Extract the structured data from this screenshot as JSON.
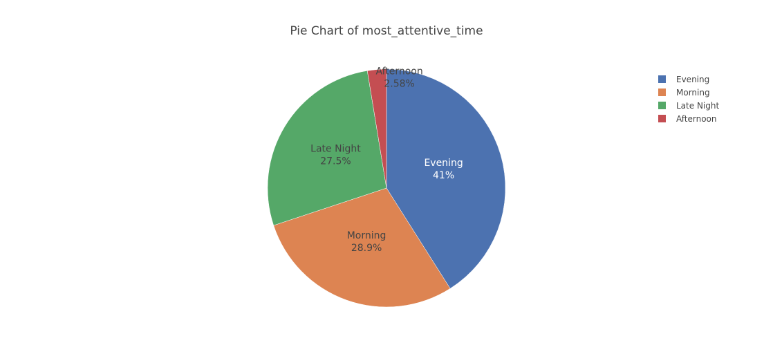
{
  "chart_data": {
    "type": "pie",
    "title": "Pie Chart of most_attentive_time",
    "labels": [
      "Evening",
      "Morning",
      "Late Night",
      "Afternoon"
    ],
    "values": [
      41.0,
      28.9,
      27.5,
      2.58
    ],
    "percent_labels": [
      "41%",
      "28.9%",
      "27.5%",
      "2.58%"
    ],
    "colors": [
      "#4c72b0",
      "#dd8452",
      "#55a868",
      "#c44e52"
    ],
    "direction": "clockwise",
    "start": "12 o'clock",
    "legend": {
      "position": "top-right",
      "entries": [
        "Evening",
        "Morning",
        "Late Night",
        "Afternoon"
      ]
    }
  }
}
